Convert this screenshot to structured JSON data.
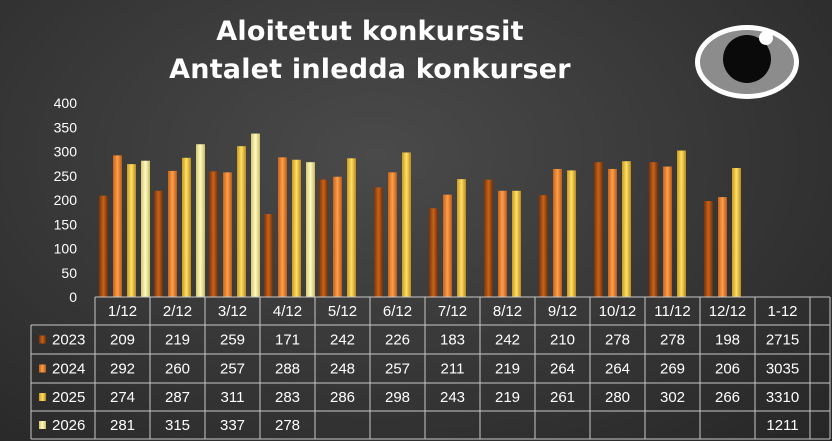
{
  "chart_data": {
    "type": "bar",
    "title": "Aloitetut konkurssit",
    "subtitle": "Antalet inledda konkurser",
    "categories": [
      "1/12",
      "2/12",
      "3/12",
      "4/12",
      "5/12",
      "6/12",
      "7/12",
      "8/12",
      "9/12",
      "10/12",
      "11/12",
      "12/12"
    ],
    "total_label": "1-12",
    "ylim": [
      0,
      400
    ],
    "yticks": [
      0,
      50,
      100,
      150,
      200,
      250,
      300,
      350,
      400
    ],
    "grid": false,
    "legend": "in data table",
    "series": [
      {
        "name": "2023",
        "color": "#b5500f",
        "values": [
          209,
          219,
          259,
          171,
          242,
          226,
          183,
          242,
          210,
          278,
          278,
          198
        ],
        "total": "2715"
      },
      {
        "name": "2024",
        "color": "#f08a2c",
        "values": [
          292,
          260,
          257,
          288,
          248,
          257,
          211,
          219,
          264,
          264,
          269,
          206
        ],
        "total": "3035"
      },
      {
        "name": "2025",
        "color": "#f2c843",
        "values": [
          274,
          287,
          311,
          283,
          286,
          298,
          243,
          219,
          261,
          280,
          302,
          266
        ],
        "total": "3310"
      },
      {
        "name": "2026",
        "color": "#f7ee9a",
        "values": [
          281,
          315,
          337,
          278,
          null,
          null,
          null,
          null,
          null,
          null,
          null,
          null
        ],
        "total": "1211"
      }
    ]
  },
  "colors": {
    "background": "#3a3a3a",
    "text": "#ffffff",
    "table_border": "#c8c8c8"
  },
  "icons": [
    "eye-icon"
  ]
}
